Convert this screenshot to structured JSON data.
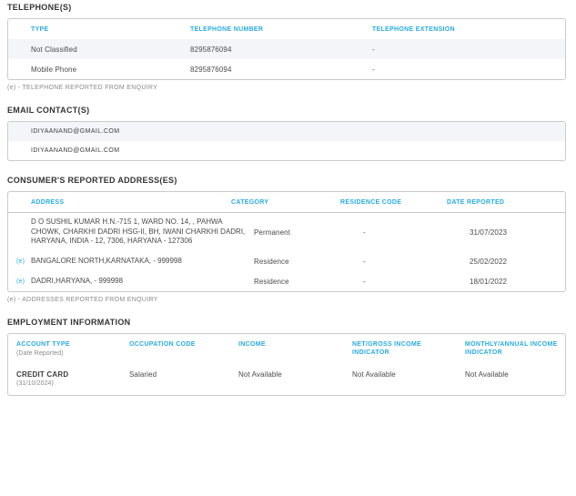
{
  "colors": {
    "accent": "#29abe2",
    "row_alt_bg": "#f4f5f9",
    "border": "#c9cacc",
    "heading_text": "#333333",
    "body_text": "#4a4a4a",
    "muted_text": "#8a8a8a"
  },
  "telephones": {
    "title": "TELEPHONE(S)",
    "columns": [
      "TYPE",
      "TELEPHONE NUMBER",
      "TELEPHONE EXTENSION"
    ],
    "rows": [
      {
        "type": "Not Classified",
        "number": "8295876094",
        "extension": "-"
      },
      {
        "type": "Mobile Phone",
        "number": "8295876094",
        "extension": "-"
      }
    ],
    "footnote": "(e) - TELEPHONE REPORTED FROM ENQUIRY"
  },
  "emails": {
    "title": "EMAIL CONTACT(S)",
    "rows": [
      "IDIYAANAND@GMAIL.COM",
      "IDIYAANAND@GMAIL.COM"
    ]
  },
  "addresses": {
    "title": "CONSUMER'S REPORTED ADDRESS(ES)",
    "columns": [
      "ADDRESS",
      "CATEGORY",
      "RESIDENCE CODE",
      "DATE REPORTED"
    ],
    "rows": [
      {
        "marker": "",
        "address": "D O SUSHIL KUMAR H.N.-715 1, WARD NO. 14, , PAHWA CHOWK, CHARKHI DADRI HSG-II, BH, IWANI CHARKHI DADRI, HARYANA, INDIA - 12, 7306, HARYANA - 127306",
        "category": "Permanent",
        "residence_code": "-",
        "date_reported": "31/07/2023"
      },
      {
        "marker": "(e)",
        "address": "BANGALORE NORTH,KARNATAKA, - 999998",
        "category": "Residence",
        "residence_code": "-",
        "date_reported": "25/02/2022"
      },
      {
        "marker": "(e)",
        "address": "DADRI,HARYANA, - 999998",
        "category": "Residence",
        "residence_code": "-",
        "date_reported": "18/01/2022"
      }
    ],
    "footnote": "(e) - ADDRESSES REPORTED FROM ENQUIRY"
  },
  "employment": {
    "title": "EMPLOYMENT INFORMATION",
    "columns": [
      {
        "label": "ACCOUNT TYPE",
        "sub": "(Date Reported)"
      },
      {
        "label": "OCCUPATION CODE",
        "sub": ""
      },
      {
        "label": "INCOME",
        "sub": ""
      },
      {
        "label": "NET/GROSS INCOME INDICATOR",
        "sub": ""
      },
      {
        "label": "MONTHLY/ANNUAL INCOME INDICATOR",
        "sub": ""
      }
    ],
    "rows": [
      {
        "account_type": "CREDIT CARD",
        "account_date": "(31/10/2024)",
        "occupation_code": "Salaried",
        "income": "Not Available",
        "net_gross": "Not Available",
        "monthly_annual": "Not Available"
      }
    ]
  }
}
